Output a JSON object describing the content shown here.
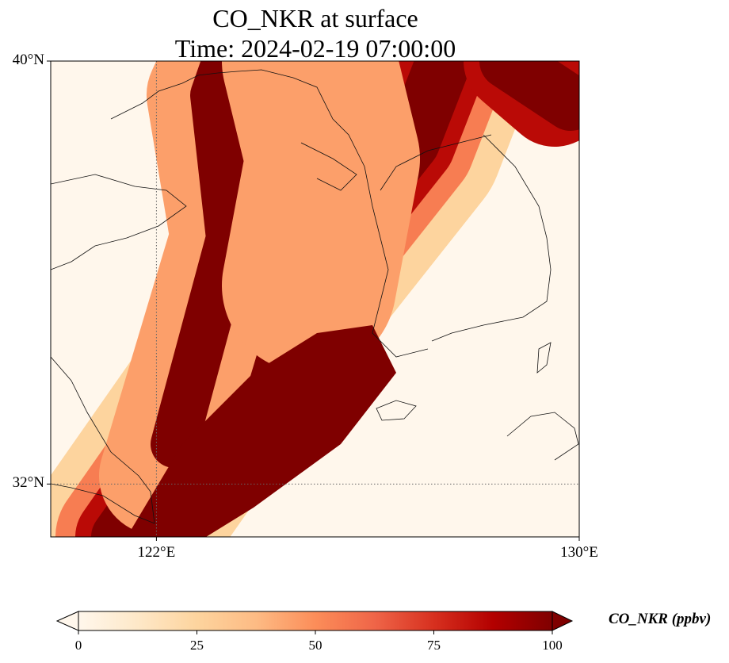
{
  "title": {
    "line1": "CO_NKR at surface",
    "line2": "Time: 2024-02-19 07:00:00"
  },
  "map": {
    "projection": "PlateCarree",
    "extent": {
      "lon": [
        120,
        130
      ],
      "lat": [
        31,
        40
      ]
    },
    "gridlines": {
      "style": "dotted",
      "color": "#555555"
    },
    "lat_ticks": [
      {
        "value": 40,
        "label": "40°N"
      },
      {
        "value": 32,
        "label": "32°N"
      }
    ],
    "lon_ticks": [
      {
        "value": 122,
        "label": "122°E"
      },
      {
        "value": 130,
        "label": "130°E"
      }
    ],
    "coastlines": true
  },
  "colorbar": {
    "label": "CO_NKR (ppbv)",
    "cmap": "OrRd",
    "range": [
      0,
      100
    ],
    "extend": "both",
    "ticks": [
      {
        "value": 0,
        "label": "0"
      },
      {
        "value": 25,
        "label": "25"
      },
      {
        "value": 50,
        "label": "50"
      },
      {
        "value": 75,
        "label": "75"
      },
      {
        "value": 100,
        "label": "100"
      }
    ]
  }
}
